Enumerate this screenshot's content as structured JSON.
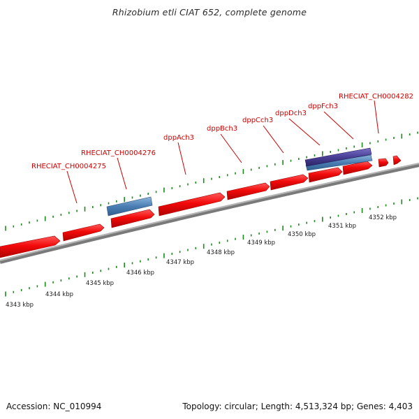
{
  "title": "Rhizobium etli CIAT 652, complete genome",
  "footer": {
    "accession": "Accession: NC_010994",
    "summary": "Topology: circular; Length: 4,513,324 bp; Genes: 4,403"
  },
  "colors": {
    "gene_forward": "#f20a0a",
    "feature_blue": "#4a7eb3",
    "feature_purple": "#4a3f96",
    "backbone": "#8a8a8a",
    "tick": "#1a8a1a",
    "label": "#cc0000"
  },
  "scale_labels": [
    "4343 kbp",
    "4344 kbp",
    "4345 kbp",
    "4346 kbp",
    "4347 kbp",
    "4348 kbp",
    "4349 kbp",
    "4350 kbp",
    "4351 kbp",
    "4352 kbp"
  ],
  "gene_labels": [
    "RHECIAT_CH0004275",
    "RHECIAT_CH0004276",
    "dppAch3",
    "dppBch3",
    "dppCch3",
    "dppDch3",
    "dppFch3",
    "RHECIAT_CH0004282"
  ]
}
